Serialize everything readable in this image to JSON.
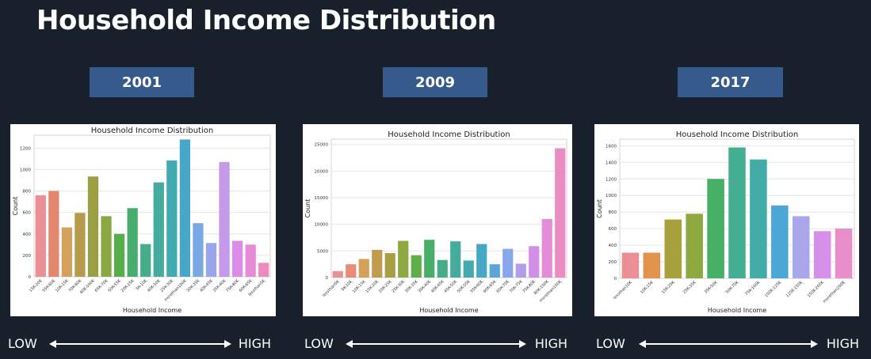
{
  "page": {
    "title": "Household Income Distribution",
    "scale": {
      "low": "LOW",
      "high": "HIGH"
    }
  },
  "panels": [
    {
      "year": "2001"
    },
    {
      "year": "2009"
    },
    {
      "year": "2017"
    }
  ],
  "chart_data": [
    {
      "type": "bar",
      "title": "Household Income Distribution",
      "xlabel": "Household Income",
      "ylabel": "Count",
      "ylim": [
        0,
        1320
      ],
      "yticks": [
        0,
        200,
        400,
        600,
        800,
        1000,
        1200
      ],
      "grid": true,
      "categories": [
        "15K-20K",
        "55K-60K",
        "10K-15K",
        "70K-80K",
        "80K-100K",
        "65K-70K",
        "50K-55K",
        "20K-25K",
        "5K-10K",
        "40K-50K",
        "25K-30K",
        "morethan100K",
        "30K-35K",
        "40K-45K",
        "35K-40K",
        "75K-80K",
        "60K-65K",
        "lessthan5K"
      ],
      "values": [
        760,
        800,
        460,
        595,
        935,
        565,
        400,
        640,
        305,
        880,
        1085,
        1280,
        500,
        315,
        1070,
        335,
        300,
        130
      ],
      "colors": [
        "#ea8f95",
        "#e3876f",
        "#d59f5c",
        "#b89a4c",
        "#9a9f42",
        "#8aa742",
        "#55ae49",
        "#47ad6f",
        "#45ad8a",
        "#45ab9e",
        "#44aab2",
        "#46a7c8",
        "#79a8e3",
        "#9aa6ec",
        "#c599ec",
        "#db8ce8",
        "#e88ad6",
        "#ec8cbd"
      ]
    },
    {
      "type": "bar",
      "title": "Household Income Distribution",
      "xlabel": "Household Income",
      "ylabel": "Count",
      "ylim": [
        0,
        26000
      ],
      "yticks": [
        0,
        5000,
        10000,
        15000,
        20000,
        25000
      ],
      "grid": true,
      "categories": [
        "lessthan5K",
        "5K-10K",
        "10K-15K",
        "15K-20K",
        "20K-25K",
        "25K-30K",
        "30K-35K",
        "35K-40K",
        "40K-45K",
        "45K-50K",
        "50K-55K",
        "55K-60K",
        "60K-65K",
        "65K-70K",
        "70K-75K",
        "75K-80K",
        "80K-100K",
        "morethan100K"
      ],
      "values": [
        1200,
        2500,
        3500,
        5200,
        4600,
        6900,
        4200,
        7100,
        3300,
        6800,
        3200,
        6300,
        2500,
        5400,
        2600,
        5900,
        11000,
        24300
      ],
      "colors": [
        "#ea8f95",
        "#e68c78",
        "#d59f5c",
        "#c19b4e",
        "#a89e44",
        "#8ea842",
        "#5fae48",
        "#48ae6a",
        "#46ad88",
        "#45ac9c",
        "#44aab0",
        "#46a8c3",
        "#5aa5dc",
        "#8aa6ea",
        "#b39deb",
        "#d18fe8",
        "#e48bdb",
        "#ec8cc4"
      ]
    },
    {
      "type": "bar",
      "title": "Household Income Distribution",
      "xlabel": "Household Income",
      "ylabel": "Count",
      "ylim": [
        0,
        1680
      ],
      "yticks": [
        0,
        200,
        400,
        600,
        800,
        1000,
        1200,
        1400,
        1600
      ],
      "grid": true,
      "categories": [
        "lessthan10K",
        "10K-15K",
        "15K-25K",
        "25K-35K",
        "35K-50K",
        "50K-75K",
        "75K-100K",
        "100K-125K",
        "125K-150K",
        "150K-200K",
        "morethan200K"
      ],
      "values": [
        310,
        310,
        710,
        780,
        1200,
        1580,
        1435,
        880,
        750,
        570,
        600
      ],
      "colors": [
        "#ea8f95",
        "#e1924d",
        "#a7a03d",
        "#8ea842",
        "#48b065",
        "#45ae91",
        "#44aca6",
        "#4aa7d6",
        "#a9a6ec",
        "#d68fe8",
        "#e98dcb"
      ]
    }
  ]
}
